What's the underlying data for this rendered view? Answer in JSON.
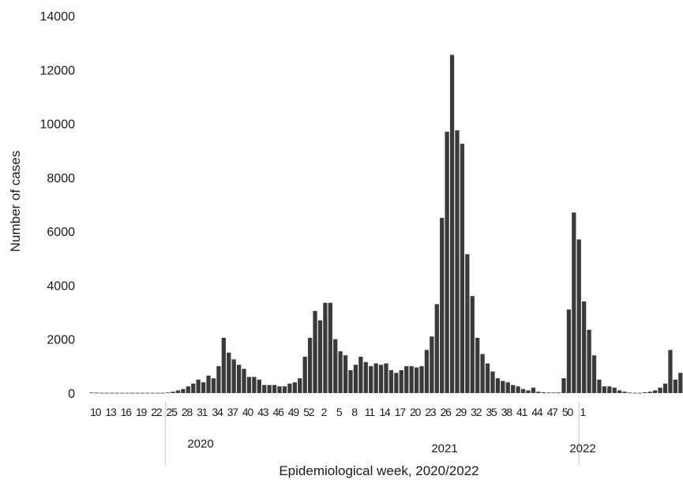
{
  "chart_data": {
    "type": "bar",
    "title": "",
    "xlabel": "Epidemiological week, 2020/2022",
    "ylabel": "Number of cases",
    "ylim": [
      0,
      14000
    ],
    "yticks": [
      0,
      2000,
      4000,
      6000,
      8000,
      10000,
      12000,
      14000
    ],
    "grid": false,
    "legend": "none",
    "bar_color": "#3a3a3a",
    "x_tick_labels": [
      "10",
      "13",
      "16",
      "19",
      "22",
      "25",
      "28",
      "31",
      "34",
      "37",
      "40",
      "43",
      "46",
      "49",
      "52",
      "2",
      "5",
      "8",
      "11",
      "14",
      "17",
      "20",
      "23",
      "26",
      "29",
      "32",
      "35",
      "38",
      "41",
      "44",
      "47",
      "50",
      "1"
    ],
    "year_labels": [
      "2020",
      "2021",
      "2022"
    ],
    "values": [
      20,
      15,
      10,
      10,
      10,
      10,
      10,
      10,
      10,
      10,
      10,
      10,
      10,
      10,
      10,
      20,
      50,
      100,
      150,
      250,
      350,
      500,
      400,
      650,
      550,
      1000,
      2050,
      1500,
      1250,
      1050,
      900,
      600,
      600,
      500,
      300,
      300,
      300,
      250,
      250,
      350,
      400,
      550,
      1350,
      2050,
      3050,
      2700,
      3350,
      3350,
      2000,
      1550,
      1400,
      850,
      1050,
      1350,
      1150,
      1000,
      1100,
      1050,
      1100,
      850,
      750,
      850,
      1000,
      1000,
      950,
      1000,
      1600,
      2100,
      3300,
      6500,
      9700,
      12550,
      9750,
      9250,
      5150,
      3600,
      2050,
      1450,
      1100,
      800,
      550,
      450,
      400,
      300,
      250,
      150,
      100,
      200,
      50,
      30,
      20,
      20,
      20,
      550,
      3100,
      6700,
      5700,
      3400,
      2350,
      1400,
      500,
      250,
      250,
      200,
      100,
      50,
      20,
      10,
      10,
      30,
      50,
      100,
      200,
      350,
      1600,
      500,
      750
    ]
  }
}
